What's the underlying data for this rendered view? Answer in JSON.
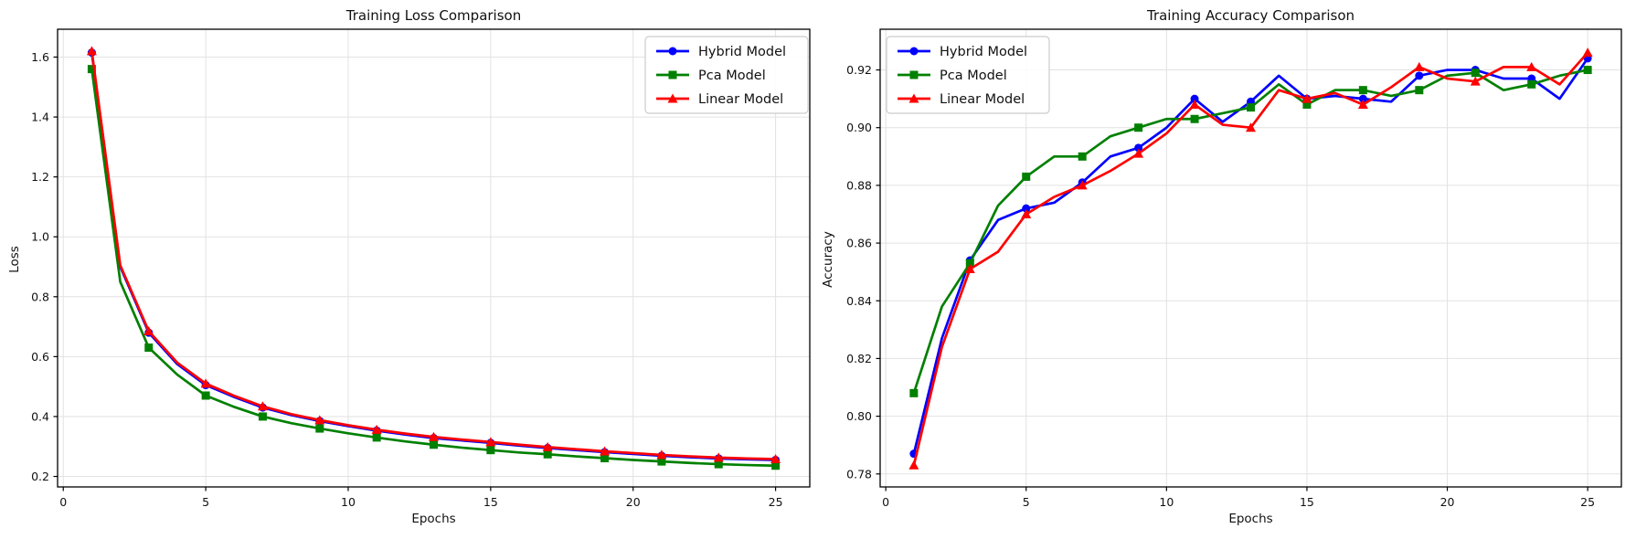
{
  "figure": {
    "background": "#ffffff",
    "text_color": "#111111",
    "spine_color": "#000000",
    "grid_color": "#e2e2e2",
    "legend_border_color": "#cccccc",
    "legend_background": "#ffffff"
  },
  "chart_data": [
    {
      "type": "line",
      "title": "Training Loss Comparison",
      "xlabel": "Epochs",
      "ylabel": "Loss",
      "grid": true,
      "legend_loc": "upper right",
      "xlim": [
        -0.2,
        26.2
      ],
      "ylim": [
        0.165,
        1.693
      ],
      "xticks": [
        0,
        5,
        10,
        15,
        20,
        25
      ],
      "xtick_labels": [
        "0",
        "5",
        "10",
        "15",
        "20",
        "25"
      ],
      "yticks": [
        0.2,
        0.4,
        0.6,
        0.8,
        1.0,
        1.2,
        1.4,
        1.6
      ],
      "ytick_labels": [
        "0.2",
        "0.4",
        "0.6",
        "0.8",
        "1.0",
        "1.2",
        "1.4",
        "1.6"
      ],
      "x": [
        1,
        2,
        3,
        4,
        5,
        6,
        7,
        8,
        9,
        10,
        11,
        12,
        13,
        14,
        15,
        16,
        17,
        18,
        19,
        20,
        21,
        22,
        23,
        24,
        25
      ],
      "marker_every": 2,
      "series": [
        {
          "name": "Hybrid Model",
          "color": "#0000ff",
          "marker": "circle",
          "values": [
            1.615,
            0.9,
            0.68,
            0.575,
            0.505,
            0.465,
            0.43,
            0.405,
            0.385,
            0.368,
            0.353,
            0.34,
            0.328,
            0.32,
            0.312,
            0.303,
            0.295,
            0.288,
            0.281,
            0.275,
            0.269,
            0.264,
            0.26,
            0.257,
            0.255
          ]
        },
        {
          "name": "Pca Model",
          "color": "#008000",
          "marker": "square",
          "values": [
            1.56,
            0.85,
            0.63,
            0.54,
            0.47,
            0.432,
            0.4,
            0.378,
            0.36,
            0.344,
            0.33,
            0.317,
            0.306,
            0.296,
            0.288,
            0.28,
            0.274,
            0.267,
            0.261,
            0.255,
            0.25,
            0.245,
            0.241,
            0.238,
            0.236
          ]
        },
        {
          "name": "Linear Model",
          "color": "#ff0000",
          "marker": "triangle",
          "values": [
            1.62,
            0.905,
            0.685,
            0.58,
            0.51,
            0.469,
            0.434,
            0.408,
            0.388,
            0.371,
            0.356,
            0.343,
            0.332,
            0.323,
            0.315,
            0.306,
            0.298,
            0.291,
            0.284,
            0.278,
            0.272,
            0.267,
            0.263,
            0.26,
            0.258
          ]
        }
      ]
    },
    {
      "type": "line",
      "title": "Training Accuracy Comparison",
      "xlabel": "Epochs",
      "ylabel": "Accuracy",
      "grid": true,
      "legend_loc": "upper left",
      "xlim": [
        -0.2,
        26.2
      ],
      "ylim": [
        0.7755,
        0.9341
      ],
      "xticks": [
        0,
        5,
        10,
        15,
        20,
        25
      ],
      "xtick_labels": [
        "0",
        "5",
        "10",
        "15",
        "20",
        "25"
      ],
      "yticks": [
        0.78,
        0.8,
        0.82,
        0.84,
        0.86,
        0.88,
        0.9,
        0.92
      ],
      "ytick_labels": [
        "0.78",
        "0.80",
        "0.82",
        "0.84",
        "0.86",
        "0.88",
        "0.90",
        "0.92"
      ],
      "x": [
        1,
        2,
        3,
        4,
        5,
        6,
        7,
        8,
        9,
        10,
        11,
        12,
        13,
        14,
        15,
        16,
        17,
        18,
        19,
        20,
        21,
        22,
        23,
        24,
        25
      ],
      "marker_every": 2,
      "series": [
        {
          "name": "Hybrid Model",
          "color": "#0000ff",
          "marker": "circle",
          "values": [
            0.787,
            0.827,
            0.854,
            0.868,
            0.872,
            0.874,
            0.881,
            0.89,
            0.893,
            0.9,
            0.91,
            0.902,
            0.909,
            0.918,
            0.91,
            0.911,
            0.91,
            0.909,
            0.918,
            0.92,
            0.92,
            0.917,
            0.917,
            0.91,
            0.924
          ]
        },
        {
          "name": "Pca Model",
          "color": "#008000",
          "marker": "square",
          "values": [
            0.808,
            0.838,
            0.853,
            0.873,
            0.883,
            0.89,
            0.89,
            0.897,
            0.9,
            0.903,
            0.903,
            0.905,
            0.907,
            0.915,
            0.908,
            0.913,
            0.913,
            0.911,
            0.913,
            0.918,
            0.919,
            0.913,
            0.915,
            0.918,
            0.92
          ]
        },
        {
          "name": "Linear Model",
          "color": "#ff0000",
          "marker": "triangle",
          "values": [
            0.783,
            0.824,
            0.851,
            0.857,
            0.87,
            0.876,
            0.88,
            0.885,
            0.891,
            0.898,
            0.908,
            0.901,
            0.9,
            0.913,
            0.91,
            0.912,
            0.908,
            0.914,
            0.921,
            0.917,
            0.916,
            0.921,
            0.921,
            0.915,
            0.926
          ]
        }
      ]
    }
  ]
}
